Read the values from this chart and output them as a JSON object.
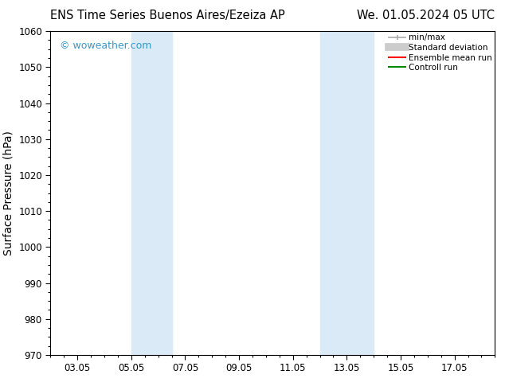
{
  "title_left": "ENS Time Series Buenos Aires/Ezeiza AP",
  "title_right": "We. 01.05.2024 05 UTC",
  "ylabel": "Surface Pressure (hPa)",
  "ylim": [
    970,
    1060
  ],
  "yticks": [
    970,
    980,
    990,
    1000,
    1010,
    1020,
    1030,
    1040,
    1050,
    1060
  ],
  "xlim": [
    1.0,
    17.5
  ],
  "xtick_labels": [
    "03.05",
    "05.05",
    "07.05",
    "09.05",
    "11.05",
    "13.05",
    "15.05",
    "17.05"
  ],
  "xtick_positions": [
    2,
    4,
    6,
    8,
    10,
    12,
    14,
    16
  ],
  "shading_regions": [
    {
      "start": 4.0,
      "end": 5.5
    },
    {
      "start": 11.0,
      "end": 13.0
    }
  ],
  "shading_color": "#daeaf7",
  "bg_color": "#ffffff",
  "plot_bg_color": "#ffffff",
  "watermark_text": "© woweather.com",
  "watermark_color": "#3399cc",
  "legend_entries": [
    {
      "label": "min/max",
      "color": "#aaaaaa",
      "linewidth": 1.2
    },
    {
      "label": "Standard deviation",
      "color": "#cccccc",
      "linewidth": 7
    },
    {
      "label": "Ensemble mean run",
      "color": "#ff0000",
      "linewidth": 1.5
    },
    {
      "label": "Controll run",
      "color": "#008800",
      "linewidth": 1.5
    }
  ],
  "tick_label_fontsize": 8.5,
  "axis_label_fontsize": 10,
  "title_fontsize": 10.5,
  "watermark_fontsize": 9
}
